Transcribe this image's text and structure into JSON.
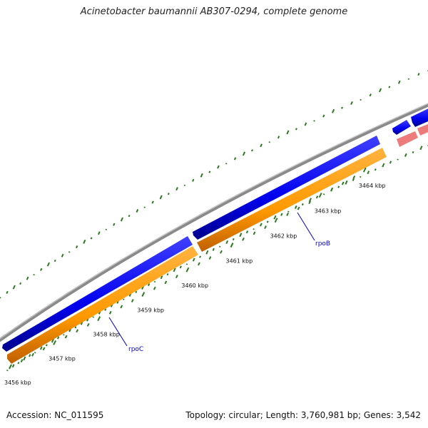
{
  "title": "Acinetobacter baumannii AB307-0294, complete genome",
  "accession_text": "Accession: NC_011595",
  "stats_text": "Topology: circular; Length: 3,760,981 bp; Genes: 3,542",
  "colors": {
    "backbone": "#8a8a8a",
    "forward_cds": "#0000ee",
    "reverse_cds": "#ff9900",
    "rna": "#ee7b7b",
    "gene_label": "#0000cc",
    "gc_marks": "#2b7a1f"
  },
  "ticks": [
    {
      "kbp": 3456,
      "label": "3456 kbp"
    },
    {
      "kbp": 3457,
      "label": "3457 kbp"
    },
    {
      "kbp": 3458,
      "label": "3458 kbp"
    },
    {
      "kbp": 3459,
      "label": "3459 kbp"
    },
    {
      "kbp": 3460,
      "label": "3460 kbp"
    },
    {
      "kbp": 3461,
      "label": "3461 kbp"
    },
    {
      "kbp": 3462,
      "label": "3462 kbp"
    },
    {
      "kbp": 3463,
      "label": "3463 kbp"
    },
    {
      "kbp": 3464,
      "label": "3464 kbp"
    }
  ],
  "gene_labels": [
    {
      "name": "rpoC"
    },
    {
      "name": "rpoB"
    }
  ]
}
